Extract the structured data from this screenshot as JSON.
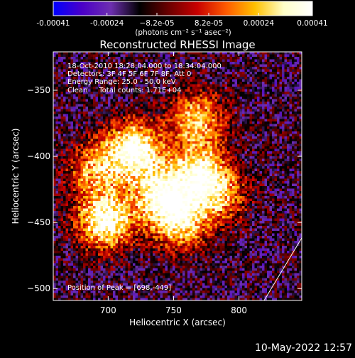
{
  "chart_data": {
    "type": "heatmap",
    "title": "Reconstructed RHESSI Image",
    "xlabel": "Heliocentric X (arcsec)",
    "ylabel": "Heliocentric Y (arcsec)",
    "xlim": [
      658,
      848
    ],
    "ylim": [
      -509,
      -321
    ],
    "x_ticks": [
      700,
      750,
      800
    ],
    "x_tick_labels": [
      "700",
      "750",
      "800"
    ],
    "y_ticks": [
      -350,
      -400,
      -450,
      -500
    ],
    "y_tick_labels": [
      "−350",
      "−400",
      "−450",
      "−500"
    ],
    "colorbar": {
      "range": [
        -0.00041,
        0.00041
      ],
      "tick_values": [
        -0.00041,
        -0.00024,
        -8.2e-05,
        8.2e-05,
        0.00024,
        0.00041
      ],
      "tick_labels": [
        "-0.00041",
        "-0.00024",
        "−8.2e-05",
        "8.2e-05",
        "0.00024",
        "0.00041"
      ],
      "unit_text": "(photons cm⁻² s⁻¹ asec⁻²)",
      "colors": [
        "#0000ff",
        "#4b00c8",
        "#6d2fb0",
        "#000000",
        "#6a0000",
        "#c80000",
        "#ff5a00",
        "#ffc000",
        "#ffffc8",
        "#ffffff"
      ]
    },
    "annotations": [
      "18-Oct-2010 18:28:04.000 to 18:34:04.000",
      "Detectors: 3F 4F 5F 6F 7F 8F, Att 0",
      "Energy Range: 25.0 - 50.0 keV",
      "Clean     Total counts: 1.71E+04"
    ],
    "peak_label": "Position of Peak = [698,-449]",
    "peak": [
      698,
      -449
    ],
    "bright_regions": [
      {
        "x": 720,
        "y": -395,
        "level": 1.0
      },
      {
        "x": 698,
        "y": -449,
        "level": 1.0
      },
      {
        "x": 740,
        "y": -428,
        "level": 0.85
      },
      {
        "x": 770,
        "y": -412,
        "level": 0.8
      },
      {
        "x": 768,
        "y": -372,
        "level": 0.7
      },
      {
        "x": 755,
        "y": -450,
        "level": 0.75
      },
      {
        "x": 690,
        "y": -410,
        "level": 0.6
      },
      {
        "x": 785,
        "y": -430,
        "level": 0.55
      }
    ],
    "grid": false,
    "legend": "colorbar-top"
  },
  "footer": {
    "timestamp": "10-May-2022 12:57"
  }
}
